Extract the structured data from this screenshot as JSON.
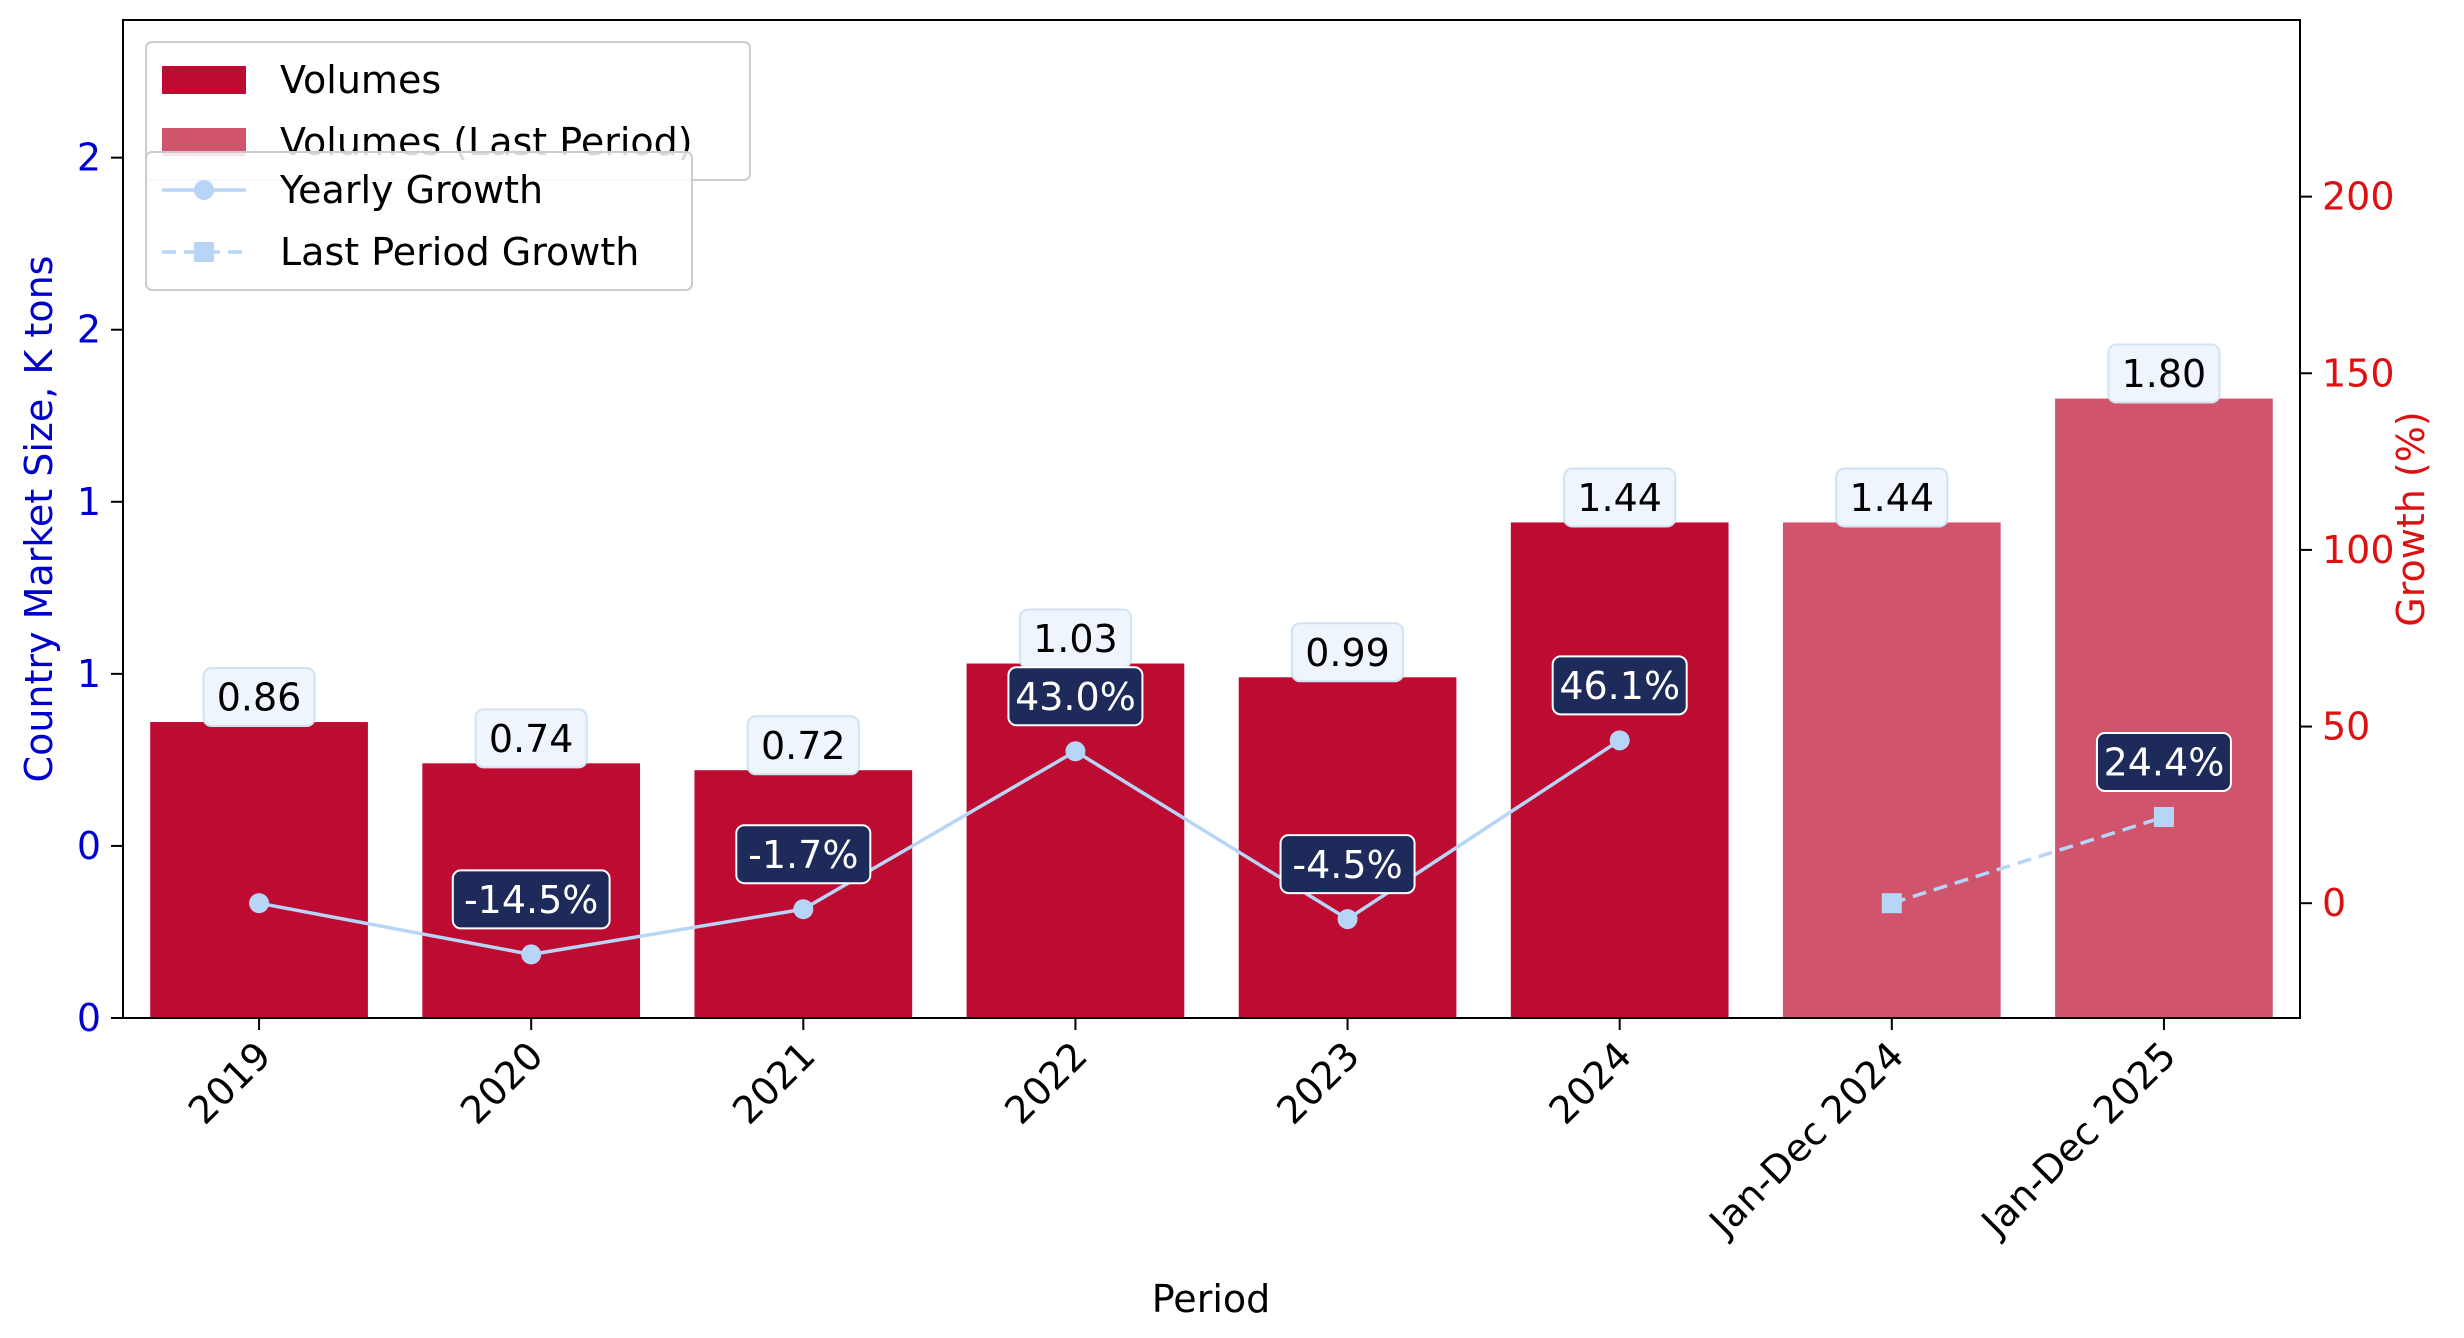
{
  "chart_data": {
    "type": "bar",
    "categories": [
      "2019",
      "2020",
      "2021",
      "2022",
      "2023",
      "2024",
      "Jan-Dec 2024",
      "Jan-Dec 2025"
    ],
    "xlabel": "Period",
    "ylabel": "Country Market Size, K tons",
    "y2label": "Growth (%)",
    "ylim": [
      0,
      2.9
    ],
    "y2lim": [
      -32.5,
      250
    ],
    "yticks": [
      {
        "value": 0,
        "label": "0"
      },
      {
        "value": 0.5,
        "label": "0"
      },
      {
        "value": 1.0,
        "label": "1"
      },
      {
        "value": 1.5,
        "label": "1"
      },
      {
        "value": 2.0,
        "label": "2"
      },
      {
        "value": 2.5,
        "label": "2"
      }
    ],
    "y2ticks": [
      0,
      50,
      100,
      150,
      200
    ],
    "bars": [
      {
        "category": "2019",
        "value": 0.86,
        "label": "0.86",
        "series": "Volumes"
      },
      {
        "category": "2020",
        "value": 0.74,
        "label": "0.74",
        "series": "Volumes"
      },
      {
        "category": "2021",
        "value": 0.72,
        "label": "0.72",
        "series": "Volumes"
      },
      {
        "category": "2022",
        "value": 1.03,
        "label": "1.03",
        "series": "Volumes"
      },
      {
        "category": "2023",
        "value": 0.99,
        "label": "0.99",
        "series": "Volumes"
      },
      {
        "category": "2024",
        "value": 1.44,
        "label": "1.44",
        "series": "Volumes"
      },
      {
        "category": "Jan-Dec 2024",
        "value": 1.44,
        "label": "1.44",
        "series": "Volumes (Last Period)"
      },
      {
        "category": "Jan-Dec 2025",
        "value": 1.8,
        "label": "1.80",
        "series": "Volumes (Last Period)"
      }
    ],
    "growth_series": [
      {
        "name": "Yearly Growth",
        "style": "solid-circle",
        "points": [
          {
            "category": "2019",
            "value": 0,
            "label": ""
          },
          {
            "category": "2020",
            "value": -14.5,
            "label": "-14.5%"
          },
          {
            "category": "2021",
            "value": -1.7,
            "label": "-1.7%"
          },
          {
            "category": "2022",
            "value": 43.0,
            "label": "43.0%"
          },
          {
            "category": "2023",
            "value": -4.5,
            "label": "-4.5%"
          },
          {
            "category": "2024",
            "value": 46.1,
            "label": "46.1%"
          }
        ]
      },
      {
        "name": "Last Period Growth",
        "style": "dashed-square",
        "points": [
          {
            "category": "Jan-Dec 2024",
            "value": 0,
            "label": ""
          },
          {
            "category": "Jan-Dec 2025",
            "value": 24.4,
            "label": "24.4%"
          }
        ]
      }
    ],
    "legend": [
      {
        "label": "Volumes",
        "kind": "bar",
        "color": "#BE0B31"
      },
      {
        "label": "Volumes (Last Period)",
        "kind": "bar",
        "color": "#D0556C"
      },
      {
        "label": "Yearly Growth",
        "kind": "line-circle",
        "color": "#B7D5F7"
      },
      {
        "label": "Last Period Growth",
        "kind": "line-square",
        "color": "#B7D5F7"
      }
    ],
    "legend_placement": "top-left",
    "grid": false,
    "colors": {
      "bar": "#BE0B31",
      "bar_last": "#D0556C",
      "line": "#B7D5F7",
      "left_axis": "#0000CC",
      "right_axis": "#DD1111",
      "growth_label_bg": "#1E2A5A",
      "value_label_bg": "#EEF5FC"
    }
  }
}
